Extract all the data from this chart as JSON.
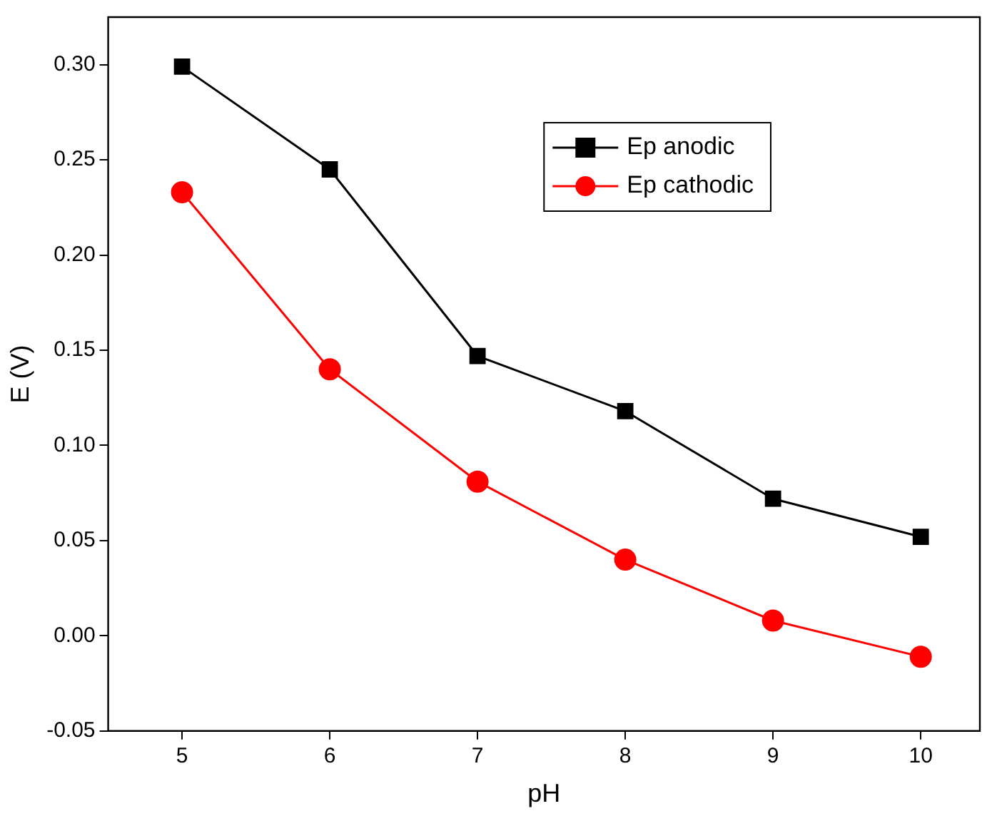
{
  "chart_data": {
    "type": "line",
    "xlabel": "pH",
    "ylabel": "E (V)",
    "x": [
      5,
      6,
      7,
      8,
      9,
      10
    ],
    "series": [
      {
        "name": "Ep anodic",
        "color": "#000000",
        "marker": "square",
        "values": [
          0.299,
          0.245,
          0.147,
          0.118,
          0.072,
          0.052
        ]
      },
      {
        "name": "Ep cathodic",
        "color": "#ff0000",
        "marker": "circle",
        "values": [
          0.233,
          0.14,
          0.081,
          0.04,
          0.008,
          -0.011
        ]
      }
    ],
    "xlim": [
      4.5,
      10.4
    ],
    "xticks": [
      5,
      6,
      7,
      8,
      9,
      10
    ],
    "ylim": [
      -0.05,
      0.325
    ],
    "yticks": [
      -0.05,
      {
        "value": 0,
        "label": "0.00"
      },
      0.05,
      {
        "value": 0.1,
        "label": "0.10"
      },
      0.15,
      {
        "value": 0.2,
        "label": "0.20"
      },
      0.25,
      {
        "value": 0.3,
        "label": "0.30"
      }
    ],
    "grid": false,
    "legend": "top right",
    "line_style": "solid"
  }
}
